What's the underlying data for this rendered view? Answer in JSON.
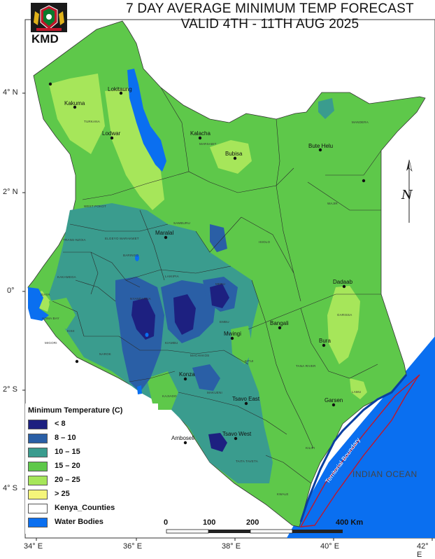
{
  "header": {
    "title_line1": "7 DAY AVERAGE MINIMUM TEMP FORECAST",
    "title_line2": "VALID  4TH - 11TH AUG 2025",
    "agency": "KMD"
  },
  "axes": {
    "latitude_labels": [
      "4° N",
      "2° N",
      "0°",
      "2° S",
      "4° S"
    ],
    "longitude_labels": [
      "34° E",
      "36° E",
      "38° E",
      "40° E",
      "42° E"
    ]
  },
  "places": [
    "Lokitaung",
    "Kakuma",
    "Lodwar",
    "Kalacha",
    "Bubisa",
    "Bute Helu",
    "Maralal",
    "Dadaab",
    "Bangali",
    "Mwingi",
    "Bura",
    "Konza",
    "Tsavo East",
    "Garsen",
    "Amboseli",
    "Tsavo West"
  ],
  "counties": [
    "TURKANA",
    "MARSABIT",
    "MANDERA",
    "WAJIR",
    "WEST POKOT",
    "SAMBURU",
    "ISIOLO",
    "BARINGO",
    "LAIKIPIA",
    "MERU",
    "TRANS-NZOIA",
    "ELGEYO MARAKWET",
    "KAKAMEGA",
    "SIAYA",
    "HOMA BAY",
    "MIGORI",
    "KISII",
    "NAROK",
    "NYANDARUA",
    "KIAMBU",
    "MACHAKOS",
    "EMBU",
    "KITUI",
    "MAKUENI",
    "KAJIADO",
    "GARISSA",
    "TANA RIVER",
    "LAMU",
    "KILIFI",
    "TAITA TAVETA",
    "KWALE"
  ],
  "legend": {
    "title": "Minimum Temperature (C)",
    "items": [
      {
        "label": "< 8",
        "color": "#1d2080"
      },
      {
        "label": "8 – 10",
        "color": "#2a5fa6"
      },
      {
        "label": "10 – 15",
        "color": "#3a9c8e"
      },
      {
        "label": "15 – 20",
        "color": "#5ec84a"
      },
      {
        "label": "20 – 25",
        "color": "#a6e65a"
      },
      {
        "label": "> 25",
        "color": "#f5f57a"
      },
      {
        "label": "Kenya_Counties",
        "color": "#ffffff"
      },
      {
        "label": "Water Bodies",
        "color": "#0a6ff0"
      }
    ]
  },
  "scale_bar": {
    "labels": [
      "0",
      "100",
      "200",
      "400 Km"
    ]
  },
  "annotations": {
    "ocean": "INDIAN OCEAN",
    "boundary": "Territorial Boundary",
    "north": "N"
  }
}
